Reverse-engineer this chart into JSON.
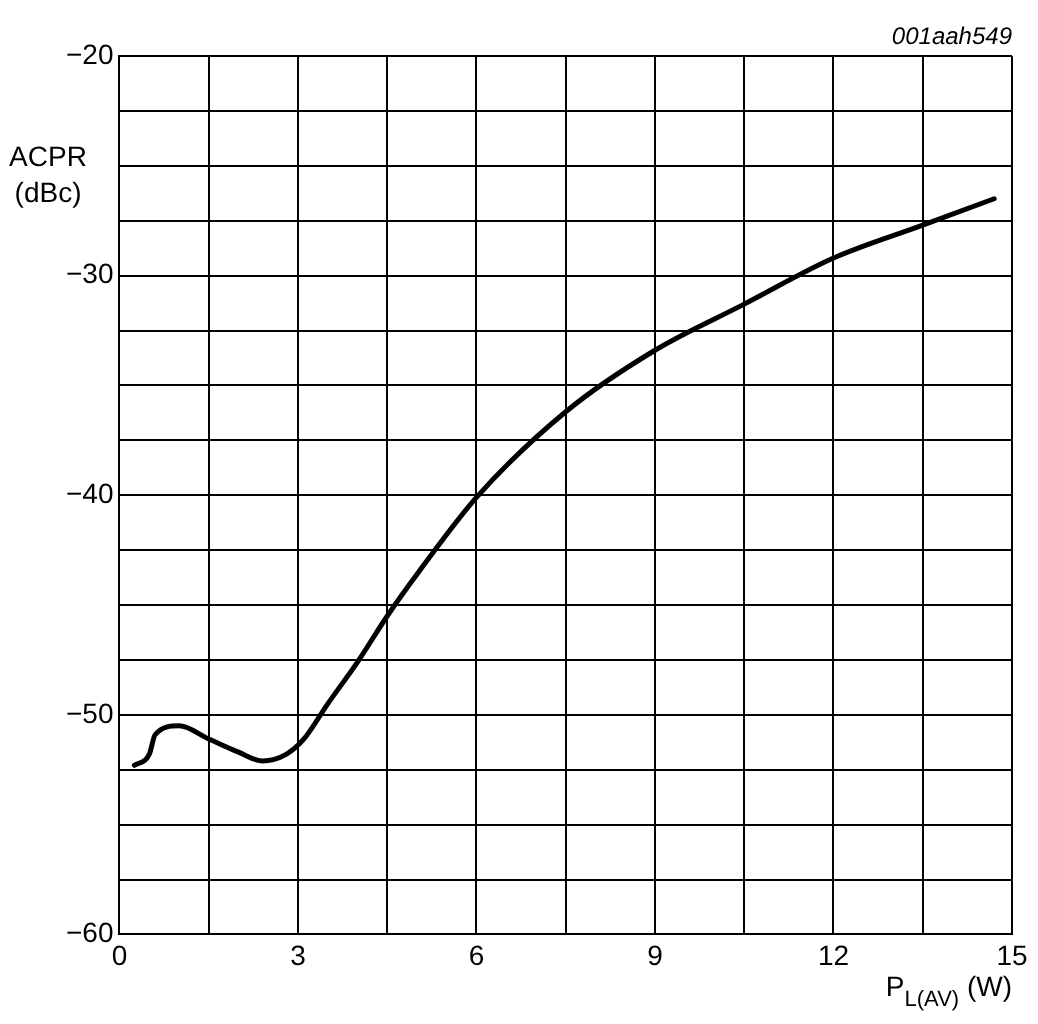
{
  "chart_data": {
    "type": "line",
    "xlabel": "P$_{L(AV)}$ (W)",
    "ylabel": "ACPR\n(dBc)",
    "annotations": [
      "001aah549"
    ],
    "series": [
      {
        "color": "#000000",
        "x": [
          0.25,
          0.5,
          0.6,
          1.0,
          1.5,
          2.0,
          2.4,
          2.8,
          3.1,
          3.5,
          4.0,
          4.5,
          5.0,
          6.0,
          7.5,
          9.0,
          10.5,
          12.0,
          13.5,
          14.7
        ],
        "values": [
          -52.3,
          -51.8,
          -50.9,
          -50.5,
          -51.1,
          -51.7,
          -52.1,
          -51.8,
          -51.1,
          -49.5,
          -47.6,
          -45.5,
          -43.6,
          -40.1,
          -36.2,
          -33.4,
          -31.3,
          -29.2,
          -27.7,
          -26.5
        ]
      }
    ],
    "xlim": [
      0,
      15
    ],
    "ylim": [
      -60,
      -20
    ],
    "xticks": [
      0,
      {
        "value": 1.5,
        "label": null
      },
      3,
      {
        "value": 4.5,
        "label": null
      },
      6,
      {
        "value": 7.5,
        "label": null
      },
      9,
      {
        "value": 10.5,
        "label": null
      },
      12,
      {
        "value": 13.5,
        "label": null
      },
      15
    ],
    "yticks": [
      -60,
      {
        "value": -57.5,
        "label": null
      },
      {
        "value": -55,
        "label": null
      },
      {
        "value": -52.5,
        "label": null
      },
      -50,
      {
        "value": -47.5,
        "label": null
      },
      {
        "value": -45,
        "label": null
      },
      {
        "value": -42.5,
        "label": null
      },
      -40,
      {
        "value": -37.5,
        "label": null
      },
      {
        "value": -35,
        "label": null
      },
      {
        "value": -32.5,
        "label": null
      },
      -30,
      {
        "value": -27.5,
        "label": null
      },
      {
        "value": -25,
        "label": null
      },
      {
        "value": -22.5,
        "label": null
      },
      -20
    ],
    "grid": true,
    "legend": false,
    "marker": "none",
    "line_style": "solid"
  }
}
